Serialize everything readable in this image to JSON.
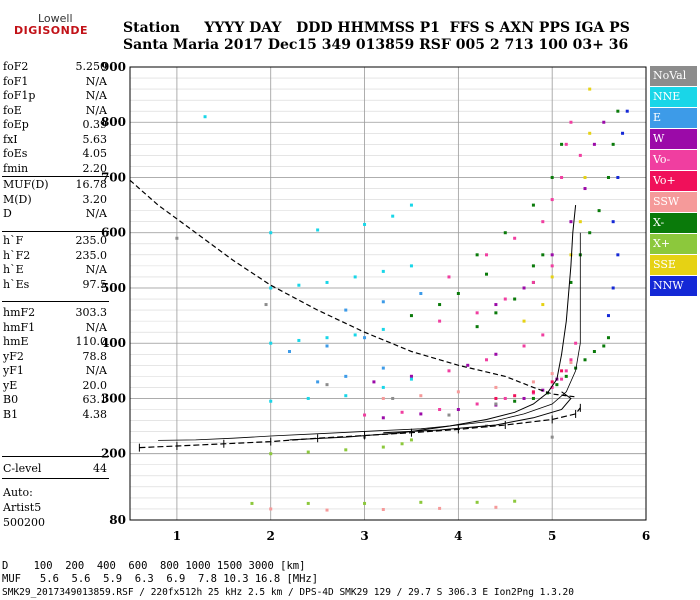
{
  "logo": {
    "line1": "Lowell",
    "line2": "DIGISONDE"
  },
  "header": {
    "row1": "Station     YYYY DAY   DDD HHMMSS P1  FFS S AXN PPS IGA PS",
    "row2": "Santa Maria 2017 Dec15 349 013859 RSF 005 2 713 100 03+ 36"
  },
  "params": {
    "group1": [
      [
        "foF2",
        "5.250"
      ],
      [
        "foF1",
        "N/A"
      ],
      [
        "foF1p",
        "N/A"
      ],
      [
        "foE",
        "N/A"
      ],
      [
        "foEp",
        "0.39"
      ],
      [
        "fxI",
        "5.63"
      ],
      [
        "foEs",
        "4.05"
      ],
      [
        "fmin",
        "2.20"
      ]
    ],
    "group2": [
      [
        "MUF(D)",
        "16.78"
      ],
      [
        "M(D)",
        "3.20"
      ],
      [
        "D",
        "N/A"
      ]
    ],
    "group3": [
      [
        "h`F",
        "235.0"
      ],
      [
        "h`F2",
        "235.0"
      ],
      [
        "h`E",
        "N/A"
      ],
      [
        "h`Es",
        "97.5"
      ]
    ],
    "group4": [
      [
        "hmF2",
        "303.3"
      ],
      [
        "hmF1",
        "N/A"
      ],
      [
        "hmE",
        "110.0"
      ],
      [
        "yF2",
        "78.8"
      ],
      [
        "yF1",
        "N/A"
      ],
      [
        "yE",
        "20.0"
      ],
      [
        "B0",
        "63.1"
      ],
      [
        "B1",
        "4.38"
      ]
    ],
    "group5": [
      [
        "C-level",
        "44"
      ]
    ],
    "auto": [
      "Auto:",
      "Artist5",
      "500200"
    ]
  },
  "legend": [
    {
      "label": "NoVal",
      "color": "#8c8c8c"
    },
    {
      "label": "NNE",
      "color": "#19d6e8"
    },
    {
      "label": "E",
      "color": "#3d9be8"
    },
    {
      "label": "W",
      "color": "#9b0aa8"
    },
    {
      "label": "Vo-",
      "color": "#f03ea0"
    },
    {
      "label": "Vo+",
      "color": "#f0105a"
    },
    {
      "label": "SSW",
      "color": "#f59a9a"
    },
    {
      "label": "X-",
      "color": "#0a7a0a"
    },
    {
      "label": "X+",
      "color": "#8cc83c"
    },
    {
      "label": "SSE",
      "color": "#e6d214"
    },
    {
      "label": "NNW",
      "color": "#1428d6"
    }
  ],
  "footer": {
    "row1": "D    100  200  400  600  800 1000 1500 3000 [km]",
    "row2": "MUF   5.6  5.6  5.9  6.3  6.9  7.8 10.3 16.8 [MHz]",
    "row3": "SMK29_2017349013859.RSF / 220fx512h 25 kHz 2.5 km / DPS-4D SMK29 129 / 29.7 S 306.3 E Ion2Png 1.3.20"
  },
  "chart_data": {
    "type": "scatter",
    "xlim": [
      0.5,
      6.0
    ],
    "ylim": [
      80,
      900
    ],
    "x_ticks": [
      1,
      2,
      3,
      4,
      5,
      6
    ],
    "y_ticks": [
      80,
      200,
      300,
      400,
      500,
      600,
      700,
      800,
      900
    ],
    "grid": true,
    "legend_position": "right",
    "series": [
      {
        "color": "#0a7a0a",
        "points": [
          [
            4.6,
            295
          ],
          [
            4.8,
            300
          ],
          [
            4.95,
            310
          ],
          [
            5.05,
            325
          ],
          [
            5.15,
            340
          ],
          [
            5.25,
            355
          ],
          [
            5.35,
            370
          ],
          [
            5.45,
            385
          ],
          [
            5.55,
            395
          ],
          [
            5.6,
            410
          ],
          [
            5.2,
            510
          ],
          [
            5.3,
            560
          ],
          [
            5.4,
            600
          ],
          [
            5.5,
            640
          ],
          [
            5.6,
            700
          ],
          [
            5.65,
            760
          ],
          [
            5.7,
            820
          ],
          [
            4.2,
            430
          ],
          [
            4.4,
            455
          ],
          [
            4.6,
            480
          ],
          [
            4.8,
            510
          ],
          [
            4.2,
            560
          ],
          [
            4.5,
            600
          ],
          [
            4.8,
            650
          ],
          [
            5.0,
            700
          ],
          [
            5.1,
            760
          ],
          [
            4.8,
            540
          ],
          [
            4.9,
            560
          ],
          [
            3.5,
            450
          ],
          [
            3.8,
            470
          ],
          [
            4.0,
            490
          ],
          [
            4.3,
            525
          ]
        ]
      },
      {
        "color": "#f03ea0",
        "points": [
          [
            3.0,
            270
          ],
          [
            3.4,
            275
          ],
          [
            3.8,
            280
          ],
          [
            4.2,
            290
          ],
          [
            4.5,
            300
          ],
          [
            4.8,
            310
          ],
          [
            5.0,
            320
          ],
          [
            5.1,
            335
          ],
          [
            5.15,
            350
          ],
          [
            5.2,
            370
          ],
          [
            5.25,
            400
          ],
          [
            3.5,
            340
          ],
          [
            3.9,
            350
          ],
          [
            4.3,
            370
          ],
          [
            4.7,
            395
          ],
          [
            4.9,
            415
          ],
          [
            3.8,
            440
          ],
          [
            4.2,
            455
          ],
          [
            4.5,
            480
          ],
          [
            4.8,
            510
          ],
          [
            5.0,
            540
          ],
          [
            3.9,
            520
          ],
          [
            4.3,
            560
          ],
          [
            4.6,
            590
          ],
          [
            4.9,
            620
          ],
          [
            5.0,
            660
          ],
          [
            5.1,
            700
          ],
          [
            5.15,
            760
          ],
          [
            5.2,
            800
          ],
          [
            5.3,
            740
          ]
        ]
      },
      {
        "color": "#9b0aa8",
        "points": [
          [
            3.2,
            265
          ],
          [
            3.6,
            272
          ],
          [
            4.0,
            280
          ],
          [
            4.4,
            288
          ],
          [
            4.7,
            300
          ],
          [
            4.9,
            315
          ],
          [
            5.05,
            335
          ],
          [
            3.1,
            330
          ],
          [
            3.5,
            340
          ],
          [
            4.1,
            360
          ],
          [
            4.4,
            380
          ],
          [
            4.4,
            470
          ],
          [
            4.7,
            500
          ],
          [
            5.0,
            560
          ],
          [
            5.2,
            620
          ],
          [
            5.35,
            680
          ],
          [
            5.45,
            760
          ],
          [
            5.55,
            800
          ]
        ]
      },
      {
        "color": "#19d6e8",
        "points": [
          [
            2.0,
            400
          ],
          [
            2.3,
            405
          ],
          [
            2.6,
            410
          ],
          [
            2.9,
            415
          ],
          [
            3.2,
            425
          ],
          [
            2.0,
            500
          ],
          [
            2.3,
            505
          ],
          [
            2.6,
            510
          ],
          [
            2.9,
            520
          ],
          [
            3.2,
            530
          ],
          [
            3.5,
            540
          ],
          [
            2.0,
            600
          ],
          [
            2.5,
            605
          ],
          [
            3.0,
            615
          ],
          [
            3.3,
            630
          ],
          [
            3.5,
            650
          ],
          [
            2.0,
            295
          ],
          [
            2.4,
            300
          ],
          [
            2.8,
            305
          ],
          [
            3.2,
            320
          ],
          [
            3.5,
            335
          ],
          [
            1.3,
            810
          ]
        ]
      },
      {
        "color": "#3d9be8",
        "points": [
          [
            2.5,
            330
          ],
          [
            2.8,
            340
          ],
          [
            3.2,
            355
          ],
          [
            2.2,
            385
          ],
          [
            2.6,
            395
          ],
          [
            3.0,
            410
          ],
          [
            2.8,
            460
          ],
          [
            3.2,
            475
          ],
          [
            3.6,
            490
          ]
        ]
      },
      {
        "color": "#8cc83c",
        "points": [
          [
            2.0,
            200
          ],
          [
            2.4,
            203
          ],
          [
            2.8,
            207
          ],
          [
            3.2,
            212
          ],
          [
            3.4,
            218
          ],
          [
            3.5,
            225
          ],
          [
            1.8,
            110
          ],
          [
            2.4,
            110
          ],
          [
            3.0,
            110
          ],
          [
            3.6,
            112
          ],
          [
            4.2,
            112
          ],
          [
            4.6,
            114
          ]
        ]
      },
      {
        "color": "#e6d214",
        "points": [
          [
            4.7,
            440
          ],
          [
            4.9,
            470
          ],
          [
            5.0,
            520
          ],
          [
            5.2,
            560
          ],
          [
            5.3,
            620
          ],
          [
            5.35,
            700
          ],
          [
            5.4,
            780
          ],
          [
            5.4,
            860
          ]
        ]
      },
      {
        "color": "#f59a9a",
        "points": [
          [
            3.2,
            300
          ],
          [
            3.6,
            305
          ],
          [
            4.0,
            312
          ],
          [
            4.4,
            320
          ],
          [
            4.8,
            330
          ],
          [
            5.0,
            345
          ],
          [
            5.2,
            365
          ],
          [
            2.0,
            100
          ],
          [
            2.6,
            98
          ],
          [
            3.2,
            99
          ],
          [
            3.8,
            101
          ],
          [
            4.4,
            103
          ]
        ]
      },
      {
        "color": "#1428d6",
        "points": [
          [
            5.6,
            450
          ],
          [
            5.65,
            500
          ],
          [
            5.7,
            560
          ],
          [
            5.65,
            620
          ],
          [
            5.7,
            700
          ],
          [
            5.75,
            780
          ],
          [
            5.8,
            820
          ]
        ]
      },
      {
        "color": "#f0105a",
        "points": [
          [
            4.4,
            300
          ],
          [
            4.6,
            305
          ],
          [
            4.8,
            312
          ],
          [
            5.0,
            330
          ],
          [
            5.1,
            350
          ]
        ]
      },
      {
        "color": "#8c8c8c",
        "points": [
          [
            1.0,
            590
          ],
          [
            1.95,
            470
          ],
          [
            2.6,
            325
          ],
          [
            3.3,
            300
          ],
          [
            3.9,
            270
          ],
          [
            4.3,
            250
          ],
          [
            4.4,
            290
          ],
          [
            5.0,
            230
          ],
          [
            3.0,
            230
          ]
        ]
      }
    ],
    "virtual_height_curve": [
      [
        0.8,
        224
      ],
      [
        1.2,
        225
      ],
      [
        1.6,
        228
      ],
      [
        2.0,
        232
      ],
      [
        2.6,
        237
      ],
      [
        3.2,
        242
      ],
      [
        3.6,
        245
      ],
      [
        4.0,
        252
      ],
      [
        4.4,
        260
      ],
      [
        4.7,
        272
      ],
      [
        5.0,
        290
      ],
      [
        5.15,
        312
      ],
      [
        5.25,
        350
      ],
      [
        5.3,
        400
      ],
      [
        5.3,
        480
      ],
      [
        5.3,
        600
      ]
    ],
    "o_trace_curve": [
      [
        2.2,
        225
      ],
      [
        2.8,
        230
      ],
      [
        3.4,
        238
      ],
      [
        3.9,
        250
      ],
      [
        4.3,
        262
      ],
      [
        4.6,
        275
      ],
      [
        4.8,
        290
      ],
      [
        4.95,
        310
      ],
      [
        5.05,
        335
      ],
      [
        5.1,
        380
      ],
      [
        5.15,
        440
      ],
      [
        5.2,
        540
      ],
      [
        5.22,
        600
      ],
      [
        5.25,
        650
      ]
    ],
    "x_trace_curve": [
      [
        3.2,
        238
      ],
      [
        3.8,
        243
      ],
      [
        4.4,
        252
      ],
      [
        4.8,
        265
      ],
      [
        5.1,
        280
      ],
      [
        5.2,
        300
      ],
      [
        5.1,
        312
      ]
    ],
    "true_height_profile": [
      [
        0.5,
        695
      ],
      [
        0.8,
        650
      ],
      [
        1.2,
        600
      ],
      [
        1.6,
        550
      ],
      [
        2.0,
        505
      ],
      [
        2.5,
        460
      ],
      [
        3.0,
        420
      ],
      [
        3.5,
        385
      ],
      [
        4.0,
        360
      ],
      [
        4.5,
        340
      ],
      [
        4.8,
        320
      ],
      [
        5.0,
        308
      ],
      [
        5.2,
        304
      ],
      [
        5.25,
        303
      ]
    ],
    "muf_curve": [
      [
        0.6,
        211
      ],
      [
        1.0,
        214
      ],
      [
        1.5,
        218
      ],
      [
        2.0,
        222
      ],
      [
        2.5,
        228
      ],
      [
        3.0,
        233
      ],
      [
        3.5,
        238
      ],
      [
        4.0,
        244
      ],
      [
        4.5,
        252
      ],
      [
        5.0,
        262
      ],
      [
        5.25,
        272
      ],
      [
        5.3,
        283
      ]
    ]
  }
}
